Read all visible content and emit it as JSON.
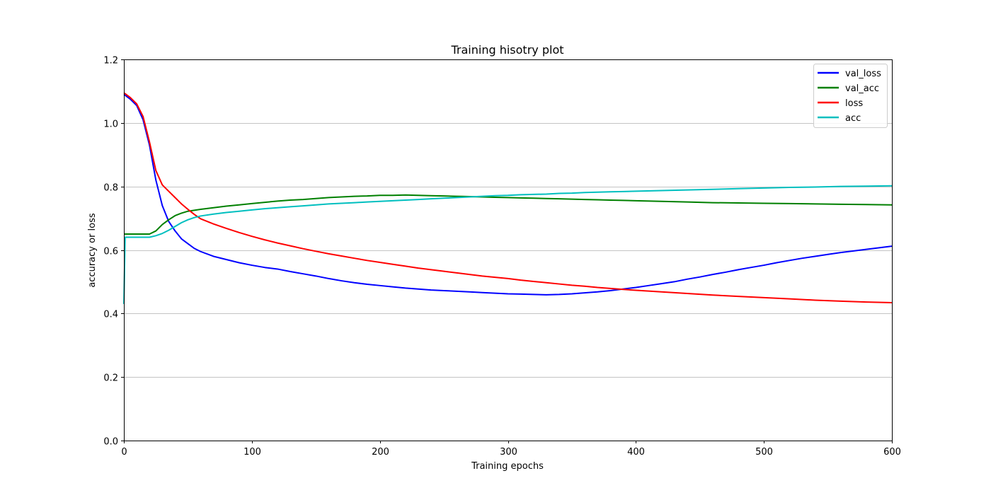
{
  "chart_data": {
    "type": "line",
    "title": "Training hisotry plot",
    "xlabel": "Training epochs",
    "ylabel": "accuracy or loss",
    "xlim": [
      0,
      600
    ],
    "ylim": [
      0.0,
      1.2
    ],
    "xticks": [
      0,
      100,
      200,
      300,
      400,
      500,
      600
    ],
    "yticks": [
      0.0,
      0.2,
      0.4,
      0.6,
      0.8,
      1.0,
      1.2
    ],
    "grid": "horizontal",
    "legend_position": "top-right",
    "series": [
      {
        "name": "val_loss",
        "color": "#0000ff",
        "points": [
          [
            0,
            1.09
          ],
          [
            5,
            1.075
          ],
          [
            10,
            1.055
          ],
          [
            15,
            1.01
          ],
          [
            20,
            0.93
          ],
          [
            25,
            0.82
          ],
          [
            30,
            0.74
          ],
          [
            35,
            0.69
          ],
          [
            40,
            0.66
          ],
          [
            45,
            0.635
          ],
          [
            50,
            0.62
          ],
          [
            55,
            0.605
          ],
          [
            60,
            0.595
          ],
          [
            70,
            0.58
          ],
          [
            80,
            0.57
          ],
          [
            90,
            0.56
          ],
          [
            100,
            0.552
          ],
          [
            110,
            0.545
          ],
          [
            120,
            0.54
          ],
          [
            130,
            0.532
          ],
          [
            140,
            0.525
          ],
          [
            150,
            0.518
          ],
          [
            160,
            0.51
          ],
          [
            170,
            0.503
          ],
          [
            180,
            0.497
          ],
          [
            190,
            0.492
          ],
          [
            200,
            0.488
          ],
          [
            210,
            0.484
          ],
          [
            220,
            0.48
          ],
          [
            230,
            0.477
          ],
          [
            240,
            0.474
          ],
          [
            250,
            0.472
          ],
          [
            260,
            0.47
          ],
          [
            270,
            0.468
          ],
          [
            280,
            0.466
          ],
          [
            290,
            0.464
          ],
          [
            300,
            0.462
          ],
          [
            310,
            0.461
          ],
          [
            320,
            0.46
          ],
          [
            330,
            0.459
          ],
          [
            340,
            0.46
          ],
          [
            350,
            0.462
          ],
          [
            360,
            0.465
          ],
          [
            370,
            0.468
          ],
          [
            380,
            0.472
          ],
          [
            390,
            0.477
          ],
          [
            400,
            0.482
          ],
          [
            410,
            0.488
          ],
          [
            420,
            0.494
          ],
          [
            430,
            0.5
          ],
          [
            440,
            0.508
          ],
          [
            450,
            0.515
          ],
          [
            460,
            0.523
          ],
          [
            470,
            0.53
          ],
          [
            480,
            0.538
          ],
          [
            490,
            0.545
          ],
          [
            500,
            0.552
          ],
          [
            510,
            0.56
          ],
          [
            520,
            0.567
          ],
          [
            530,
            0.574
          ],
          [
            540,
            0.58
          ],
          [
            550,
            0.586
          ],
          [
            560,
            0.592
          ],
          [
            570,
            0.597
          ],
          [
            580,
            0.602
          ],
          [
            590,
            0.607
          ],
          [
            600,
            0.612
          ]
        ]
      },
      {
        "name": "val_acc",
        "color": "#008000",
        "points": [
          [
            0,
            0.65
          ],
          [
            10,
            0.65
          ],
          [
            20,
            0.65
          ],
          [
            25,
            0.66
          ],
          [
            30,
            0.68
          ],
          [
            35,
            0.695
          ],
          [
            40,
            0.708
          ],
          [
            45,
            0.716
          ],
          [
            50,
            0.722
          ],
          [
            60,
            0.728
          ],
          [
            70,
            0.733
          ],
          [
            80,
            0.738
          ],
          [
            90,
            0.742
          ],
          [
            100,
            0.746
          ],
          [
            110,
            0.75
          ],
          [
            120,
            0.754
          ],
          [
            130,
            0.757
          ],
          [
            140,
            0.759
          ],
          [
            150,
            0.762
          ],
          [
            160,
            0.765
          ],
          [
            170,
            0.767
          ],
          [
            180,
            0.769
          ],
          [
            190,
            0.77
          ],
          [
            200,
            0.772
          ],
          [
            210,
            0.772
          ],
          [
            220,
            0.773
          ],
          [
            230,
            0.772
          ],
          [
            240,
            0.771
          ],
          [
            250,
            0.77
          ],
          [
            260,
            0.769
          ],
          [
            270,
            0.768
          ],
          [
            280,
            0.767
          ],
          [
            290,
            0.766
          ],
          [
            300,
            0.765
          ],
          [
            310,
            0.764
          ],
          [
            320,
            0.763
          ],
          [
            330,
            0.762
          ],
          [
            340,
            0.761
          ],
          [
            350,
            0.76
          ],
          [
            360,
            0.759
          ],
          [
            370,
            0.758
          ],
          [
            380,
            0.757
          ],
          [
            390,
            0.756
          ],
          [
            400,
            0.755
          ],
          [
            420,
            0.753
          ],
          [
            440,
            0.751
          ],
          [
            460,
            0.749
          ],
          [
            480,
            0.748
          ],
          [
            500,
            0.747
          ],
          [
            520,
            0.746
          ],
          [
            540,
            0.745
          ],
          [
            560,
            0.744
          ],
          [
            580,
            0.743
          ],
          [
            600,
            0.742
          ]
        ]
      },
      {
        "name": "loss",
        "color": "#ff0000",
        "points": [
          [
            0,
            1.095
          ],
          [
            5,
            1.08
          ],
          [
            10,
            1.06
          ],
          [
            15,
            1.02
          ],
          [
            20,
            0.94
          ],
          [
            25,
            0.85
          ],
          [
            30,
            0.805
          ],
          [
            35,
            0.785
          ],
          [
            40,
            0.765
          ],
          [
            45,
            0.745
          ],
          [
            50,
            0.728
          ],
          [
            55,
            0.712
          ],
          [
            60,
            0.698
          ],
          [
            70,
            0.682
          ],
          [
            80,
            0.668
          ],
          [
            90,
            0.655
          ],
          [
            100,
            0.643
          ],
          [
            110,
            0.632
          ],
          [
            120,
            0.622
          ],
          [
            130,
            0.613
          ],
          [
            140,
            0.604
          ],
          [
            150,
            0.596
          ],
          [
            160,
            0.588
          ],
          [
            170,
            0.581
          ],
          [
            180,
            0.574
          ],
          [
            190,
            0.567
          ],
          [
            200,
            0.561
          ],
          [
            210,
            0.555
          ],
          [
            220,
            0.549
          ],
          [
            230,
            0.543
          ],
          [
            240,
            0.538
          ],
          [
            250,
            0.533
          ],
          [
            260,
            0.528
          ],
          [
            270,
            0.523
          ],
          [
            280,
            0.518
          ],
          [
            290,
            0.514
          ],
          [
            300,
            0.51
          ],
          [
            310,
            0.505
          ],
          [
            320,
            0.501
          ],
          [
            330,
            0.497
          ],
          [
            340,
            0.493
          ],
          [
            350,
            0.489
          ],
          [
            360,
            0.486
          ],
          [
            370,
            0.482
          ],
          [
            380,
            0.479
          ],
          [
            390,
            0.476
          ],
          [
            400,
            0.473
          ],
          [
            420,
            0.468
          ],
          [
            440,
            0.463
          ],
          [
            460,
            0.458
          ],
          [
            480,
            0.454
          ],
          [
            500,
            0.45
          ],
          [
            520,
            0.446
          ],
          [
            540,
            0.442
          ],
          [
            560,
            0.439
          ],
          [
            580,
            0.436
          ],
          [
            600,
            0.434
          ]
        ]
      },
      {
        "name": "acc",
        "color": "#00bfbf",
        "points": [
          [
            0,
            0.43
          ],
          [
            1,
            0.64
          ],
          [
            10,
            0.64
          ],
          [
            20,
            0.64
          ],
          [
            25,
            0.645
          ],
          [
            30,
            0.652
          ],
          [
            35,
            0.662
          ],
          [
            40,
            0.674
          ],
          [
            45,
            0.686
          ],
          [
            50,
            0.695
          ],
          [
            55,
            0.702
          ],
          [
            60,
            0.707
          ],
          [
            70,
            0.713
          ],
          [
            80,
            0.718
          ],
          [
            90,
            0.722
          ],
          [
            100,
            0.726
          ],
          [
            110,
            0.73
          ],
          [
            120,
            0.733
          ],
          [
            130,
            0.736
          ],
          [
            140,
            0.739
          ],
          [
            150,
            0.742
          ],
          [
            160,
            0.745
          ],
          [
            170,
            0.747
          ],
          [
            180,
            0.749
          ],
          [
            190,
            0.751
          ],
          [
            200,
            0.753
          ],
          [
            210,
            0.755
          ],
          [
            220,
            0.757
          ],
          [
            230,
            0.759
          ],
          [
            240,
            0.761
          ],
          [
            250,
            0.763
          ],
          [
            260,
            0.765
          ],
          [
            270,
            0.767
          ],
          [
            280,
            0.769
          ],
          [
            290,
            0.771
          ],
          [
            300,
            0.772
          ],
          [
            310,
            0.774
          ],
          [
            320,
            0.775
          ],
          [
            330,
            0.776
          ],
          [
            340,
            0.778
          ],
          [
            350,
            0.779
          ],
          [
            360,
            0.781
          ],
          [
            370,
            0.782
          ],
          [
            380,
            0.783
          ],
          [
            390,
            0.784
          ],
          [
            400,
            0.785
          ],
          [
            420,
            0.787
          ],
          [
            440,
            0.789
          ],
          [
            460,
            0.791
          ],
          [
            480,
            0.793
          ],
          [
            500,
            0.795
          ],
          [
            520,
            0.797
          ],
          [
            540,
            0.798
          ],
          [
            560,
            0.8
          ],
          [
            580,
            0.801
          ],
          [
            600,
            0.802
          ]
        ]
      }
    ]
  }
}
